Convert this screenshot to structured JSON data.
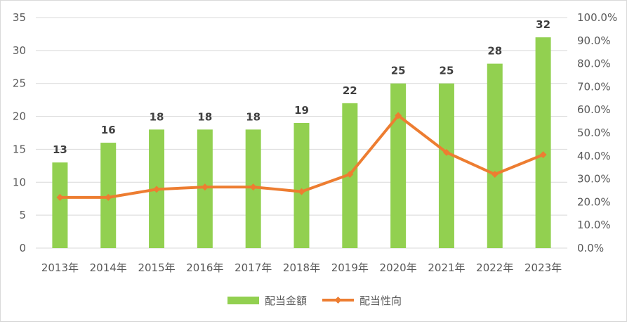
{
  "chart_data": {
    "type": "bar",
    "categories": [
      "2013年",
      "2014年",
      "2015年",
      "2016年",
      "2017年",
      "2018年",
      "2019年",
      "2020年",
      "2021年",
      "2022年",
      "2023年"
    ],
    "series": [
      {
        "name": "配当金額",
        "type": "bar",
        "axis": "left",
        "color": "#92d050",
        "values": [
          13,
          16,
          18,
          18,
          18,
          19,
          22,
          25,
          25,
          28,
          32
        ],
        "data_labels": [
          "13",
          "16",
          "18",
          "18",
          "18",
          "19",
          "22",
          "25",
          "25",
          "28",
          "32"
        ]
      },
      {
        "name": "配当性向",
        "type": "line",
        "axis": "right",
        "color": "#ed7d31",
        "marker": "diamond",
        "values": [
          22.0,
          22.0,
          25.5,
          26.5,
          26.5,
          24.5,
          32.0,
          57.5,
          41.5,
          32.0,
          40.5
        ]
      }
    ],
    "y_left": {
      "min": 0,
      "max": 35,
      "step": 5,
      "ticks": [
        "0",
        "5",
        "10",
        "15",
        "20",
        "25",
        "30",
        "35"
      ]
    },
    "y_right": {
      "min": 0,
      "max": 100,
      "step": 10,
      "ticks": [
        "0.0%",
        "10.0%",
        "20.0%",
        "30.0%",
        "40.0%",
        "50.0%",
        "60.0%",
        "70.0%",
        "80.0%",
        "90.0%",
        "100.0%"
      ]
    },
    "grid": true,
    "legend_position": "bottom",
    "title": "",
    "xlabel": "",
    "ylabel": ""
  }
}
